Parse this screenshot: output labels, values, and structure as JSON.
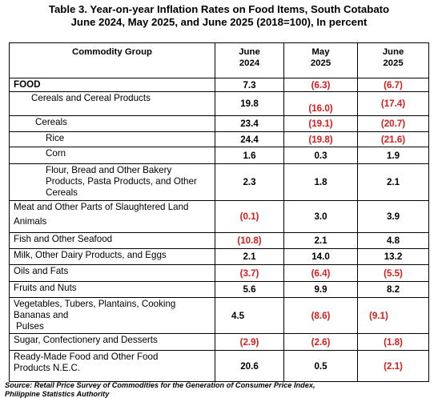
{
  "title": {
    "line1": "Table 3. Year-on-year Inflation Rates on Food Items, South Cotabato",
    "line2": "June 2024, May 2025, and June 2025 (2018=100), In percent"
  },
  "table": {
    "headers": {
      "group": "Commodity Group",
      "col1_line1": "June",
      "col1_line2": "2024",
      "col2_line1": "May",
      "col2_line2": "2025",
      "col3_line1": "June",
      "col3_line2": "2025"
    },
    "rows": [
      {
        "label": "FOOD",
        "v1": "7.3",
        "v2": "(6.3)",
        "v3": "(6.7)"
      },
      {
        "label": "Cereals and Cereal Products",
        "v1": "19.8",
        "v2": "(16.0)",
        "v3": "(17.4)"
      },
      {
        "label": "Cereals",
        "v1": "23.4",
        "v2": "(19.1)",
        "v3": "(20.7)"
      },
      {
        "label": "Rice",
        "v1": "24.4",
        "v2": "(19.8)",
        "v3": "(21.6)"
      },
      {
        "label": "Corn",
        "v1": "1.6",
        "v2": "0.3",
        "v3": "1.9"
      },
      {
        "label_lines": [
          "Flour, Bread and Other Bakery",
          "Products, Pasta Products, and Other",
          "Cereals"
        ],
        "v1": "2.3",
        "v2": "1.8",
        "v3": "2.1"
      },
      {
        "label_lines": [
          "Meat and Other Parts of Slaughtered Land",
          "Animals"
        ],
        "v1": "(0.1)",
        "v2": "3.0",
        "v3": "3.9"
      },
      {
        "label": "Fish and Other Seafood",
        "v1": "(10.8)",
        "v2": "2.1",
        "v3": "4.8"
      },
      {
        "label": "Milk, Other Dairy Products, and Eggs",
        "v1": "2.1",
        "v2": "14.0",
        "v3": "13.2"
      },
      {
        "label": "Oils and Fats",
        "v1": "(3.7)",
        "v2": "(6.4)",
        "v3": "(5.5)"
      },
      {
        "label": "Fruits and Nuts",
        "v1": "5.6",
        "v2": "9.9",
        "v3": "8.2"
      },
      {
        "label_lines": [
          "Vegetables, Tubers, Plantains, Cooking",
          "Bananas and",
          "Pulses"
        ],
        "v1": "4.5",
        "v2": "(8.6)",
        "v3": "(9.1)"
      },
      {
        "label": "Sugar, Confectionery and Desserts",
        "v1": "(2.9)",
        "v2": "(2.6)",
        "v3": "(1.8)"
      },
      {
        "label_lines": [
          "Ready-Made Food and Other Food",
          "Products N.E.C."
        ],
        "v1": "20.6",
        "v2": "0.5",
        "v3": "(2.1)"
      }
    ]
  },
  "source": {
    "line1": "Source: Retail Price Survey of Commodities for the Generation of Consumer Price Index,",
    "line2": "Philippine Statistics Authority"
  },
  "colors": {
    "negative": "#d91c1c",
    "text": "#000000"
  }
}
